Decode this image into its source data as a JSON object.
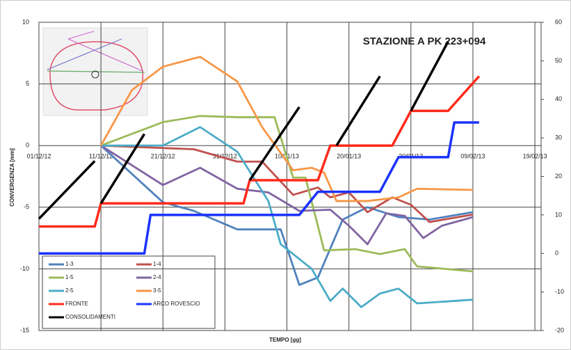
{
  "chart_data": {
    "type": "line",
    "title": "STAZIONE A PK 223+094",
    "x_label": "TEMPO [gg]",
    "y_label": "CONVERGENZA [mm]",
    "xlim": [
      0,
      81
    ],
    "xticks": [
      {
        "value": 0,
        "label": "01/12/12"
      },
      {
        "value": 10,
        "label": "11/12/12"
      },
      {
        "value": 20,
        "label": "21/12/12"
      },
      {
        "value": 30,
        "label": "31/12/12"
      },
      {
        "value": 40,
        "label": "10/01/13"
      },
      {
        "value": 50,
        "label": "20/01/13"
      },
      {
        "value": 60,
        "label": "30/01/13"
      },
      {
        "value": 70,
        "label": "09/02/13"
      },
      {
        "value": 80,
        "label": "19/02/13"
      }
    ],
    "ylim": [
      -15,
      10
    ],
    "yticks": [
      -15,
      -10,
      -5,
      0,
      5,
      10
    ],
    "y2lim": [
      -20,
      60
    ],
    "y2ticks": [
      -20,
      -10,
      0,
      10,
      20,
      30,
      40,
      50,
      60
    ],
    "grid": true,
    "legend": "lower left",
    "series": [
      {
        "name": "1-3",
        "color": "#4f81bd",
        "x": [
          10,
          20,
          25,
          32,
          39,
          42,
          45,
          49,
          53,
          58,
          63,
          70
        ],
        "values": [
          0,
          -4.6,
          -5.3,
          -6.8,
          -6.8,
          -11.3,
          -10.7,
          -6,
          -5,
          -5.8,
          -6,
          -5.4
        ]
      },
      {
        "name": "1-4",
        "color": "#c0504d",
        "x": [
          10,
          20,
          25,
          32,
          36,
          41,
          45,
          47,
          50,
          53,
          57,
          60,
          63,
          70
        ],
        "values": [
          0,
          -0.2,
          -0.3,
          -1.3,
          -1.3,
          -4,
          -3.4,
          -4.2,
          -3.8,
          -5.4,
          -4.2,
          -4.8,
          -6.2,
          -5.6
        ]
      },
      {
        "name": "1-5",
        "color": "#9bbb59",
        "x": [
          10,
          20,
          26,
          32,
          38,
          41,
          43,
          46,
          51,
          55,
          59,
          61,
          70
        ],
        "values": [
          0,
          1.9,
          2.4,
          2.3,
          2.3,
          -2.6,
          -2.6,
          -8.5,
          -8.4,
          -8.8,
          -8.4,
          -9.8,
          -10.2
        ]
      },
      {
        "name": "2-4",
        "color": "#8064a2",
        "x": [
          10,
          20,
          26,
          32,
          37,
          42,
          47,
          50,
          53,
          56,
          59,
          62,
          65,
          70
        ],
        "values": [
          0,
          -3.2,
          -1.8,
          -3.5,
          -3.8,
          -5.3,
          -5.2,
          -6.5,
          -8,
          -5.5,
          -5.7,
          -7.5,
          -6.5,
          -5.8
        ]
      },
      {
        "name": "2-5",
        "color": "#4bacc6",
        "x": [
          10,
          20,
          26,
          32,
          37,
          39,
          44,
          47,
          49,
          52,
          55,
          58,
          61,
          70
        ],
        "values": [
          0,
          0,
          1.5,
          -0.5,
          -4.5,
          -8,
          -10,
          -12.6,
          -11.6,
          -13.1,
          -12,
          -11.6,
          -12.8,
          -12.5
        ]
      },
      {
        "name": "3-5",
        "color": "#f79646",
        "x": [
          10,
          15,
          20,
          26,
          32,
          36,
          41,
          44,
          46,
          48,
          53,
          58,
          61,
          70
        ],
        "values": [
          0,
          4.5,
          6.4,
          7.2,
          5.2,
          1.5,
          -2,
          -1.8,
          -2.2,
          -4.5,
          -4.5,
          -4.2,
          -3.5,
          -3.6
        ]
      },
      {
        "name": "FRONTE",
        "color": "#ff2a1a",
        "axis": "y2",
        "x": [
          0,
          9,
          10,
          33,
          34,
          45,
          47,
          57,
          60,
          66,
          71
        ],
        "values": [
          7,
          7,
          13,
          13,
          19,
          19,
          28,
          28,
          37,
          37,
          46
        ]
      },
      {
        "name": "ARCO ROVESCIO",
        "color": "#1a32ff",
        "axis": "y2",
        "x": [
          0,
          17,
          18,
          42,
          45,
          55,
          58,
          66,
          67,
          71
        ],
        "values": [
          0,
          0,
          10,
          10,
          16,
          16,
          25,
          25,
          34,
          34
        ]
      },
      {
        "name": "CONSOLIDAMENTI",
        "color": "#000000",
        "axis": "y2",
        "x": [
          0,
          9,
          null,
          10,
          17,
          null,
          34,
          42,
          null,
          48,
          55,
          null,
          60,
          66
        ],
        "values": [
          9,
          24,
          null,
          13,
          31,
          null,
          19,
          38,
          null,
          28,
          46,
          null,
          37,
          55
        ]
      }
    ]
  }
}
